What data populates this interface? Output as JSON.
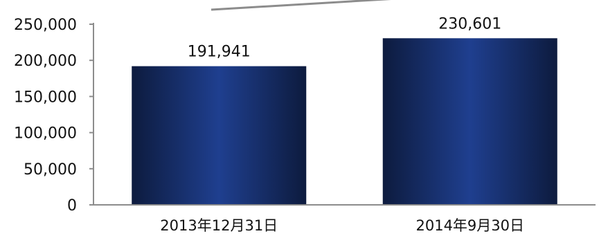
{
  "chart_data": {
    "type": "bar",
    "title": "",
    "xlabel": "",
    "ylabel": "",
    "categories": [
      "2013年12月31日",
      "2014年9月30日"
    ],
    "values": [
      191941,
      230601
    ],
    "value_labels": [
      "191,941",
      "230,601"
    ],
    "ylim": [
      0,
      250000
    ],
    "yticks": [
      0,
      50000,
      100000,
      150000,
      200000,
      250000
    ],
    "ytick_labels": [
      "0",
      "50,000",
      "100,000",
      "150,000",
      "200,000",
      "250,000"
    ],
    "grid": false,
    "legend": "none",
    "colors": {
      "bar_edge": "#0d1b3e",
      "bar_center": "#1f3f8f",
      "axis": "#8c8c8c",
      "trend_line": "#8c8c8c"
    }
  }
}
